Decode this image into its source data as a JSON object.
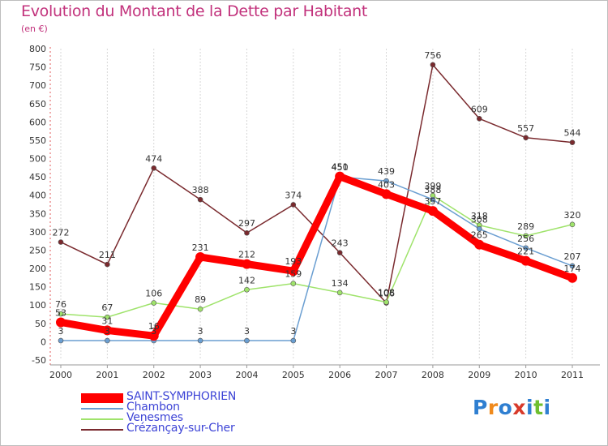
{
  "title": "Evolution du Montant de la Dette par Habitant",
  "subtitle": "(en €)",
  "logo": "Proxiti",
  "chart_data": {
    "type": "line",
    "title": "Evolution du Montant de la Dette par Habitant",
    "subtitle": "(en €)",
    "x": [
      "2000",
      "2001",
      "2002",
      "2003",
      "2004",
      "2005",
      "2006",
      "2007",
      "2008",
      "2009",
      "2010",
      "2011"
    ],
    "ylim": [
      -50,
      800
    ],
    "yticks": [
      "-50",
      "0",
      "50",
      "100",
      "150",
      "200",
      "250",
      "300",
      "350",
      "400",
      "450",
      "500",
      "550",
      "600",
      "650",
      "700",
      "750",
      "800"
    ],
    "grid": "vertical",
    "legend_position": "bottom-left",
    "series": [
      {
        "name": "SAINT-SYMPHORIEN",
        "color": "#ff0000",
        "values": [
          53,
          31,
          16,
          231,
          212,
          193,
          451,
          403,
          357,
          265,
          221,
          174
        ],
        "labels": [
          "53",
          "31",
          "16",
          "231",
          "212",
          "193",
          "451",
          "403",
          "357",
          "265",
          "221",
          "174"
        ]
      },
      {
        "name": "Chambon",
        "color": "#6a9ed1",
        "values": [
          3,
          3,
          3,
          3,
          3,
          3,
          450,
          439,
          388,
          308,
          256,
          207
        ],
        "labels": [
          "3",
          "3",
          "3",
          "3",
          "3",
          "3",
          "450",
          "439",
          "388",
          "308",
          "256",
          "207"
        ]
      },
      {
        "name": "Venesmes",
        "color": "#9fe36b",
        "values": [
          76,
          67,
          106,
          89,
          142,
          159,
          134,
          108,
          399,
          318,
          289,
          320
        ],
        "labels": [
          "76",
          "67",
          "106",
          "89",
          "142",
          "159",
          "134",
          "108",
          "399",
          "318",
          "289",
          "320"
        ]
      },
      {
        "name": "Crézançay-sur-Cher",
        "color": "#7a2a2e",
        "values": [
          272,
          211,
          474,
          388,
          297,
          374,
          243,
          106,
          756,
          609,
          557,
          544
        ],
        "labels": [
          "272",
          "211",
          "474",
          "388",
          "297",
          "374",
          "243",
          "106",
          "756",
          "609",
          "557",
          "544"
        ]
      }
    ]
  }
}
